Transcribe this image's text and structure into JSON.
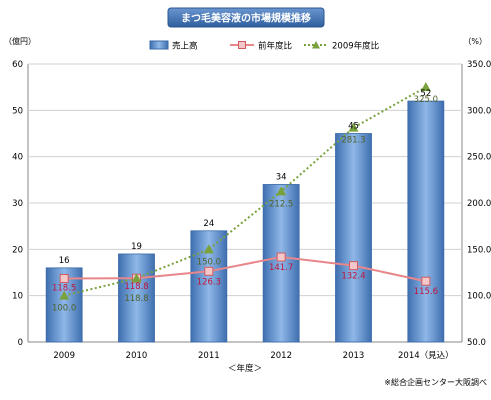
{
  "chart_data": {
    "type": "bar",
    "title": "まつ毛美容液の市場規模推移",
    "y_left_unit": "（億円）",
    "y_right_unit": "（%）",
    "xlabel": "＜年度＞",
    "source": "※総合企画センター大阪調べ",
    "categories": [
      "2009",
      "2010",
      "2011",
      "2012",
      "2013",
      "2014（見込）"
    ],
    "y_left_ticks": [
      "0",
      "10",
      "20",
      "30",
      "40",
      "50",
      "60"
    ],
    "y_right_ticks": [
      "50.0",
      "100.0",
      "150.0",
      "200.0",
      "250.0",
      "300.0",
      "350.0"
    ],
    "ylim_left": [
      0,
      60
    ],
    "ylim_right": [
      50,
      350
    ],
    "legend": [
      "売上高",
      "前年度比",
      "2009年度比"
    ],
    "series": [
      {
        "name": "売上高",
        "type": "bar",
        "axis": "left",
        "values": [
          16,
          19,
          24,
          34,
          45,
          52
        ],
        "labels": [
          "16",
          "19",
          "24",
          "34",
          "45",
          "52"
        ],
        "color": "#4f81bd"
      },
      {
        "name": "前年度比",
        "type": "line",
        "axis": "right",
        "values": [
          118.5,
          118.8,
          126.3,
          141.7,
          132.4,
          115.6
        ],
        "labels": [
          "118.5",
          "118.8",
          "126.3",
          "141.7",
          "132.4",
          "115.6"
        ],
        "color": "#e8868a",
        "label_color": "#c0143c"
      },
      {
        "name": "2009年度比",
        "type": "line",
        "axis": "right",
        "values": [
          100.0,
          118.8,
          150.0,
          212.5,
          281.3,
          325.0
        ],
        "labels": [
          "100.0",
          "118.8",
          "150.0",
          "212.5",
          "281.3",
          "325.0"
        ],
        "color": "#7aa23c",
        "label_color": "#4f6228"
      }
    ]
  }
}
